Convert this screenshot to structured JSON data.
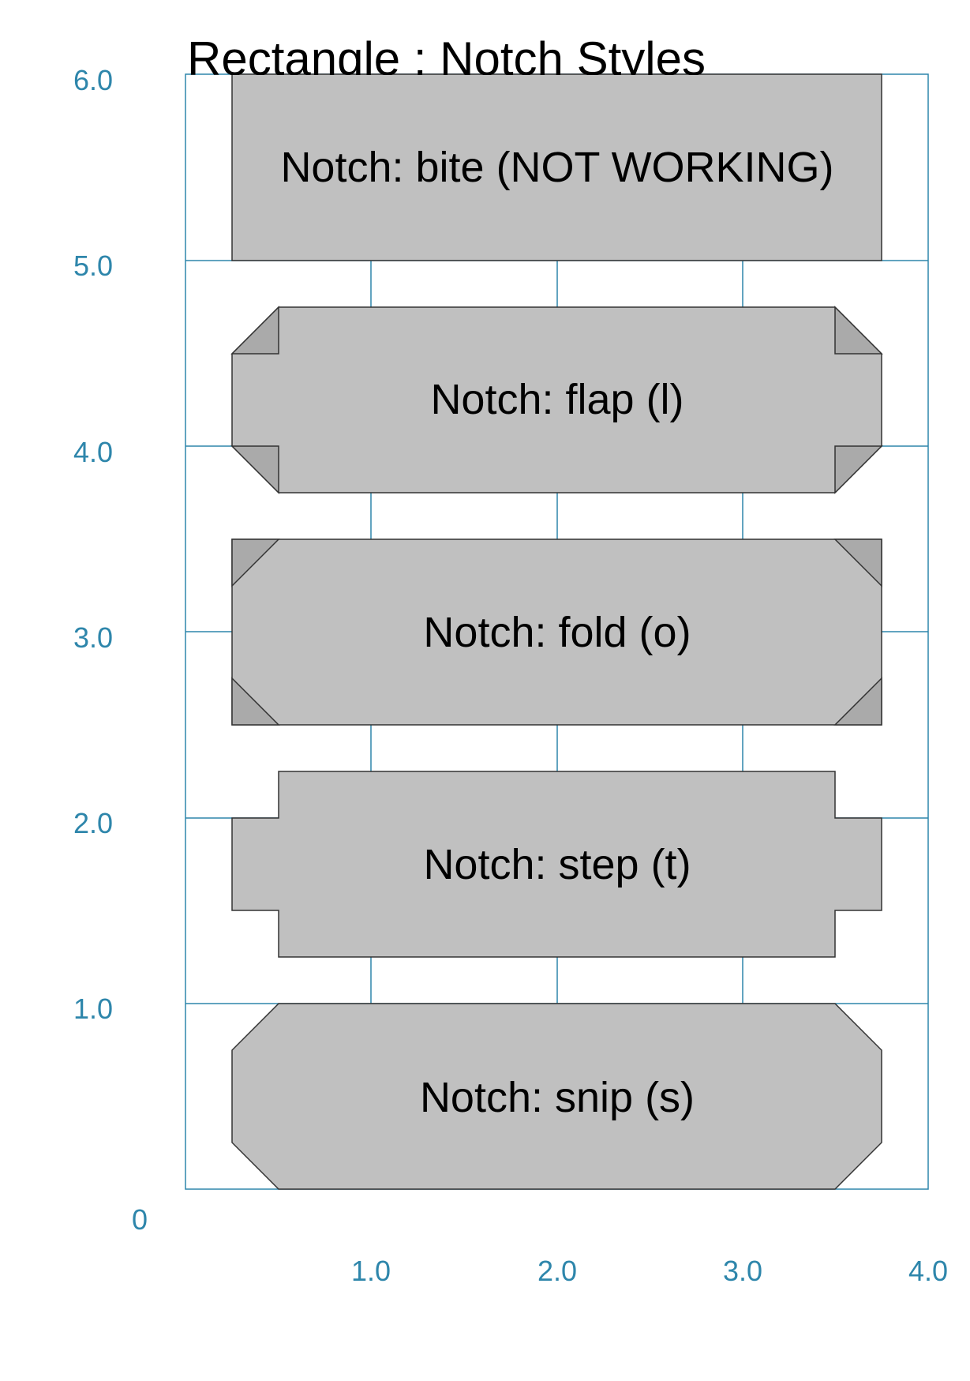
{
  "title": "Rectangle : Notch Styles",
  "axes": {
    "origin_label": "0",
    "x_ticks": [
      "1.0",
      "2.0",
      "3.0",
      "4.0"
    ],
    "y_ticks": [
      "1.0",
      "2.0",
      "3.0",
      "4.0",
      "5.0",
      "6.0"
    ],
    "color": "#2e86ab"
  },
  "shapes": [
    {
      "style": "bite",
      "label": "Notch: bite (NOT WORKING)"
    },
    {
      "style": "flap",
      "label": "Notch: flap (l)"
    },
    {
      "style": "fold",
      "label": "Notch: fold (o)"
    },
    {
      "style": "step",
      "label": "Notch: step (t)"
    },
    {
      "style": "snip",
      "label": "Notch: snip (s)"
    }
  ],
  "colors": {
    "shape_fill": "#c0c0c0",
    "shape_stroke": "#333333",
    "grid": "#2e86ab"
  }
}
